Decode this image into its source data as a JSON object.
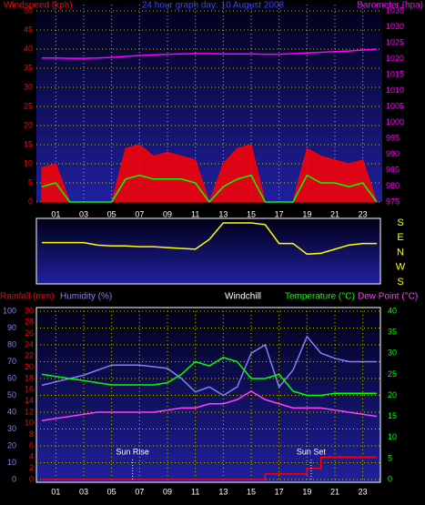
{
  "chart_data": [
    {
      "type": "line",
      "title": "24 hour graph day: 10 August 2008",
      "grid": true,
      "x": [
        0,
        1,
        2,
        3,
        4,
        5,
        6,
        7,
        8,
        9,
        10,
        11,
        12,
        13,
        14,
        15,
        16,
        17,
        18,
        19,
        20,
        21,
        22,
        23,
        24
      ],
      "xlim": [
        0,
        24
      ],
      "xticks": [
        {
          "value": 1,
          "label": "01"
        },
        {
          "value": 3,
          "label": "03"
        },
        {
          "value": 5,
          "label": "05"
        },
        {
          "value": 7,
          "label": "07"
        },
        {
          "value": 9,
          "label": "09"
        },
        {
          "value": 11,
          "label": "11"
        },
        {
          "value": 13,
          "label": "13"
        },
        {
          "value": 15,
          "label": "15"
        },
        {
          "value": 17,
          "label": "17"
        },
        {
          "value": 19,
          "label": "19"
        },
        {
          "value": 21,
          "label": "21"
        },
        {
          "value": 23,
          "label": "23"
        }
      ],
      "ylim": [
        0,
        50
      ],
      "yticks": [
        0,
        5,
        10,
        15,
        20,
        25,
        30,
        35,
        40,
        45,
        50
      ],
      "y2lim": [
        975,
        1035
      ],
      "y2ticks": [
        975,
        980,
        985,
        990,
        995,
        1000,
        1005,
        1010,
        1015,
        1020,
        1025,
        1030,
        1035
      ],
      "series": [
        {
          "name": "Windspeed (kph)",
          "color": "#ff0000",
          "style": "area",
          "values": [
            9,
            10,
            0,
            0,
            0,
            0,
            14,
            15,
            12,
            13,
            12,
            11,
            0,
            10,
            14,
            15,
            0,
            0,
            0,
            14,
            12,
            11,
            10,
            11,
            0
          ]
        },
        {
          "color": "#00ff00",
          "values": [
            4,
            5,
            0,
            0,
            0,
            0,
            6,
            7,
            6,
            6,
            6,
            5,
            0,
            4,
            6,
            7,
            0,
            0,
            0,
            7,
            5,
            5,
            4,
            5,
            0
          ]
        },
        {
          "name": "Barometer (hpa)",
          "color": "#ff00ff",
          "axis": "y2",
          "values": [
            1020.2,
            1020.2,
            1020.1,
            1020.1,
            1020.2,
            1020.4,
            1020.7,
            1021,
            1021.2,
            1021.4,
            1021.5,
            1021.6,
            1021.6,
            1021.5,
            1021.5,
            1021.5,
            1021.4,
            1021.4,
            1021.6,
            1021.8,
            1022,
            1022.2,
            1022.4,
            1022.7,
            1023
          ]
        }
      ]
    },
    {
      "type": "line",
      "grid": false,
      "x": [
        0,
        1,
        2,
        3,
        4,
        5,
        6,
        7,
        8,
        9,
        10,
        11,
        12,
        13,
        14,
        15,
        16,
        17,
        18,
        19,
        20,
        21,
        22,
        23,
        24
      ],
      "xlim": [
        0,
        24
      ],
      "ylim": [
        -180,
        180
      ],
      "yticks": [
        {
          "value": 180,
          "label": "S"
        },
        {
          "value": 90,
          "label": "E"
        },
        {
          "value": 0,
          "label": "N"
        },
        {
          "value": -90,
          "label": "W"
        },
        {
          "value": -180,
          "label": "S"
        }
      ],
      "series": [
        {
          "color": "#ffff00",
          "values": [
            60,
            60,
            60,
            60,
            45,
            40,
            40,
            35,
            35,
            30,
            25,
            20,
            80,
            180,
            180,
            180,
            170,
            55,
            55,
            -10,
            -5,
            20,
            45,
            55,
            55
          ]
        }
      ]
    },
    {
      "type": "line",
      "grid": true,
      "windchill_label": "Windchill",
      "x": [
        0,
        1,
        2,
        3,
        4,
        5,
        6,
        7,
        8,
        9,
        10,
        11,
        12,
        13,
        14,
        15,
        16,
        17,
        18,
        19,
        20,
        21,
        22,
        23,
        24
      ],
      "xlim": [
        0,
        24
      ],
      "xticks": [
        {
          "value": 1,
          "label": "01"
        },
        {
          "value": 3,
          "label": "03"
        },
        {
          "value": 5,
          "label": "05"
        },
        {
          "value": 7,
          "label": "07"
        },
        {
          "value": 9,
          "label": "09"
        },
        {
          "value": 11,
          "label": "11"
        },
        {
          "value": 13,
          "label": "13"
        },
        {
          "value": 15,
          "label": "15"
        },
        {
          "value": 17,
          "label": "17"
        },
        {
          "value": 19,
          "label": "19"
        },
        {
          "value": 21,
          "label": "21"
        },
        {
          "value": 23,
          "label": "23"
        }
      ],
      "ylim": [
        0,
        100
      ],
      "yticks": [
        0,
        10,
        20,
        30,
        40,
        50,
        60,
        70,
        80,
        90,
        100
      ],
      "y2lim": [
        0,
        30
      ],
      "y2ticks": [
        0,
        2,
        4,
        6,
        8,
        10,
        12,
        14,
        16,
        18,
        20,
        22,
        24,
        26,
        28,
        30
      ],
      "y3lim": [
        0,
        40
      ],
      "y3ticks": [
        0,
        5,
        10,
        15,
        20,
        25,
        30,
        35,
        40
      ],
      "series": [
        {
          "name": "Rainfall (mm)",
          "color": "#ff0000",
          "axis": "y2",
          "drawstyle": "steps-post",
          "values": [
            0,
            0,
            0,
            0,
            0,
            0,
            0,
            0,
            0,
            0,
            0,
            0,
            0,
            0,
            0,
            0,
            1,
            1,
            1,
            2,
            4,
            4,
            4,
            4,
            4
          ]
        },
        {
          "name": "Humidity (%)",
          "color": "#8080ff",
          "values": [
            56,
            58,
            60,
            62,
            65,
            68,
            68,
            68,
            67,
            66,
            60,
            52,
            55,
            50,
            55,
            75,
            80,
            55,
            65,
            85,
            75,
            72,
            70,
            70,
            70
          ]
        },
        {
          "name": "Temperature (°C)",
          "color": "#00ff00",
          "axis": "y3",
          "values": [
            25,
            24.5,
            24,
            23.5,
            23,
            22.5,
            22.5,
            22.5,
            22.5,
            23,
            25,
            28,
            27,
            29,
            28,
            24,
            24,
            25,
            21,
            20,
            20,
            20.5,
            20.5,
            20.5,
            20.5
          ]
        },
        {
          "name": "Dew Point (°C)",
          "color": "#ff40ff",
          "axis": "y3",
          "values": [
            14,
            14.5,
            15,
            15.5,
            16,
            16,
            16,
            16,
            16,
            16.5,
            17,
            17,
            18,
            18,
            19,
            21,
            19,
            18,
            17,
            17,
            17,
            16.5,
            16,
            15.5,
            15
          ]
        }
      ],
      "annotations": [
        {
          "text": "Sun Rise",
          "x": 6.5
        },
        {
          "text": "Sun Set",
          "x": 19.3
        }
      ]
    }
  ]
}
